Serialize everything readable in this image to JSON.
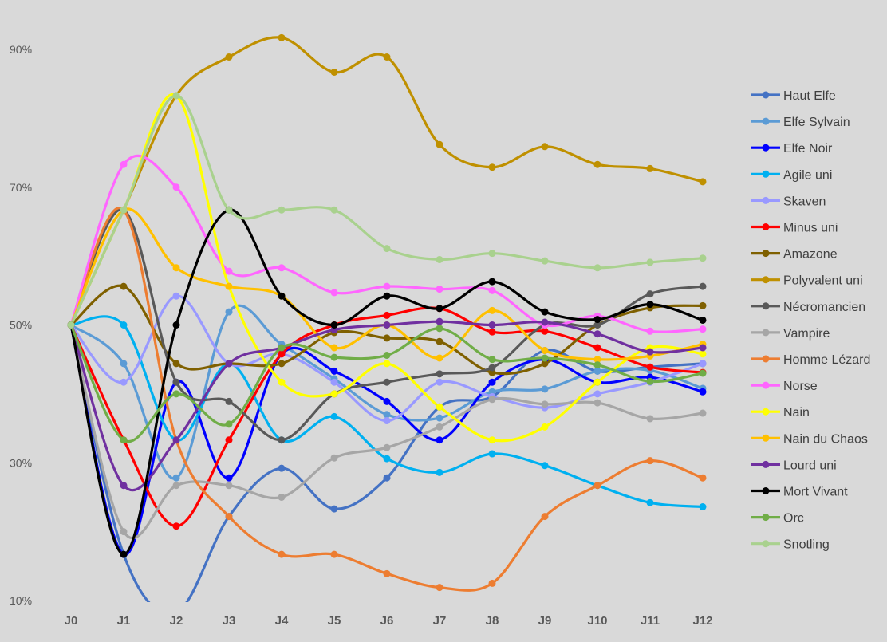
{
  "chart_data": {
    "type": "line",
    "title": "",
    "xlabel": "",
    "ylabel": "",
    "categories": [
      "J0",
      "J1",
      "J2",
      "J3",
      "J4",
      "J5",
      "J6",
      "J7",
      "J8",
      "J9",
      "J10",
      "J11",
      "J12"
    ],
    "y_ticks": [
      "10%",
      "30%",
      "50%",
      "70%",
      "90%"
    ],
    "y_tick_values": [
      10,
      30,
      50,
      70,
      90
    ],
    "ylim": [
      10,
      90
    ],
    "grid": false,
    "legend_position": "right",
    "smooth": true,
    "series": [
      {
        "name": "Haut Elfe",
        "color": "#4472c4",
        "values": [
          50,
          16.7,
          8.3,
          22.2,
          29.2,
          23.3,
          27.8,
          38.1,
          39.6,
          46.3,
          43.3,
          43.9,
          44.4
        ]
      },
      {
        "name": "Elfe Sylvain",
        "color": "#5b9bd5",
        "values": [
          50,
          44.4,
          27.8,
          51.9,
          47.2,
          42.2,
          37.0,
          36.5,
          40.3,
          40.7,
          43.3,
          43.4,
          40.8
        ]
      },
      {
        "name": "Elfe Noir",
        "color": "#0000ff",
        "values": [
          50,
          16.7,
          41.7,
          27.8,
          45.8,
          43.3,
          38.9,
          33.3,
          41.7,
          45.0,
          41.7,
          42.4,
          40.3
        ]
      },
      {
        "name": "Agile uni",
        "color": "#00b0f0",
        "values": [
          50,
          50,
          33.3,
          44.4,
          33.3,
          36.7,
          30.6,
          28.6,
          31.3,
          29.6,
          26.7,
          24.2,
          23.6
        ]
      },
      {
        "name": "Skaven",
        "color": "#9999ff",
        "values": [
          50,
          41.7,
          54.2,
          44.4,
          45.8,
          41.7,
          36.1,
          41.7,
          39.6,
          38.0,
          40.0,
          41.7,
          44.4
        ]
      },
      {
        "name": "Minus uni",
        "color": "#ff0000",
        "values": [
          50,
          33.3,
          20.8,
          33.3,
          45.8,
          50,
          51.4,
          52.4,
          49.0,
          49.1,
          46.7,
          43.9,
          43.1
        ]
      },
      {
        "name": "Amazone",
        "color": "#7f6000",
        "values": [
          50,
          55.6,
          44.4,
          44.4,
          44.4,
          48.9,
          48.1,
          47.6,
          43.1,
          44.4,
          50,
          52.5,
          52.8
        ]
      },
      {
        "name": "Polyvalent uni",
        "color": "#bf9000",
        "values": [
          50,
          66.7,
          83.3,
          88.9,
          91.7,
          86.7,
          88.9,
          76.2,
          72.9,
          75.9,
          73.3,
          72.7,
          70.8
        ]
      },
      {
        "name": "Nécromancien",
        "color": "#595959",
        "values": [
          50,
          66.7,
          41.7,
          38.9,
          33.3,
          40,
          41.7,
          42.9,
          43.8,
          50,
          50,
          54.5,
          55.6
        ]
      },
      {
        "name": "Vampire",
        "color": "#a6a6a6",
        "values": [
          50,
          20,
          26.7,
          26.7,
          25,
          30.7,
          32.2,
          35.2,
          39.2,
          38.5,
          38.7,
          36.4,
          37.2
        ]
      },
      {
        "name": "Homme Lézard",
        "color": "#ed7d31",
        "values": [
          50,
          66.7,
          33.3,
          22.2,
          16.7,
          16.7,
          13.9,
          11.9,
          12.5,
          22.2,
          26.7,
          30.3,
          27.8
        ]
      },
      {
        "name": "Norse",
        "color": "#ff66ff",
        "values": [
          50,
          73.3,
          70,
          57.8,
          58.3,
          54.7,
          55.6,
          55.2,
          55.0,
          50,
          51.3,
          49.1,
          49.4
        ]
      },
      {
        "name": "Nain",
        "color": "#ffff00",
        "values": [
          50,
          66.7,
          83.3,
          55.6,
          41.7,
          40,
          44.4,
          38.1,
          33.3,
          35.2,
          41.7,
          46.7,
          45.8
        ]
      },
      {
        "name": "Nain du Chaos",
        "color": "#ffc000",
        "values": [
          50,
          66.7,
          58.3,
          55.6,
          54.2,
          46.7,
          50,
          45.2,
          52.1,
          46.3,
          45,
          45.5,
          47.2
        ]
      },
      {
        "name": "Lourd uni",
        "color": "#7030a0",
        "values": [
          50,
          26.7,
          33.3,
          44.4,
          46.7,
          49.3,
          50,
          50.5,
          50,
          50.4,
          48.7,
          46.1,
          46.7
        ]
      },
      {
        "name": "Mort Vivant",
        "color": "#000000",
        "values": [
          50,
          16.7,
          50,
          66.7,
          54.2,
          50,
          54.2,
          52.4,
          56.3,
          51.9,
          50.8,
          53.0,
          50.7
        ]
      },
      {
        "name": "Orc",
        "color": "#70ad47",
        "values": [
          50,
          33.3,
          40,
          35.6,
          46.7,
          45.3,
          45.6,
          49.5,
          45,
          45.2,
          44.2,
          41.8,
          43.0
        ]
      },
      {
        "name": "Snotling",
        "color": "#a9d18e",
        "values": [
          50,
          66.7,
          83.3,
          66.7,
          66.7,
          66.7,
          61.1,
          59.5,
          60.4,
          59.3,
          58.3,
          59.1,
          59.7
        ]
      }
    ]
  }
}
